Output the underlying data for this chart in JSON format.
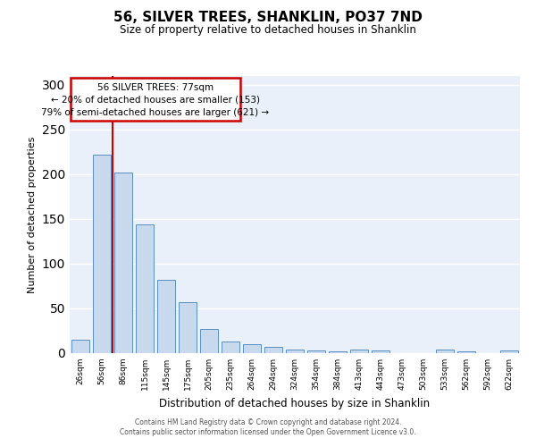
{
  "title": "56, SILVER TREES, SHANKLIN, PO37 7ND",
  "subtitle": "Size of property relative to detached houses in Shanklin",
  "xlabel": "Distribution of detached houses by size in Shanklin",
  "ylabel": "Number of detached properties",
  "categories": [
    "26sqm",
    "56sqm",
    "86sqm",
    "115sqm",
    "145sqm",
    "175sqm",
    "205sqm",
    "235sqm",
    "264sqm",
    "294sqm",
    "324sqm",
    "354sqm",
    "384sqm",
    "413sqm",
    "443sqm",
    "473sqm",
    "503sqm",
    "533sqm",
    "562sqm",
    "592sqm",
    "622sqm"
  ],
  "values": [
    15,
    222,
    202,
    144,
    82,
    57,
    27,
    13,
    10,
    7,
    4,
    3,
    2,
    4,
    3,
    0,
    0,
    4,
    2,
    0,
    3
  ],
  "bar_color": "#c9d9ed",
  "bar_edge_color": "#5a8fc0",
  "marker_label": "56 SILVER TREES: 77sqm",
  "annotation_line1": "← 20% of detached houses are smaller (153)",
  "annotation_line2": "79% of semi-detached houses are larger (621) →",
  "marker_color": "#cc0000",
  "ylim": [
    0,
    310
  ],
  "yticks": [
    0,
    50,
    100,
    150,
    200,
    250,
    300
  ],
  "background_color": "#eaf0f9",
  "grid_color": "#ffffff",
  "footer_line1": "Contains HM Land Registry data © Crown copyright and database right 2024.",
  "footer_line2": "Contains public sector information licensed under the Open Government Licence v3.0."
}
